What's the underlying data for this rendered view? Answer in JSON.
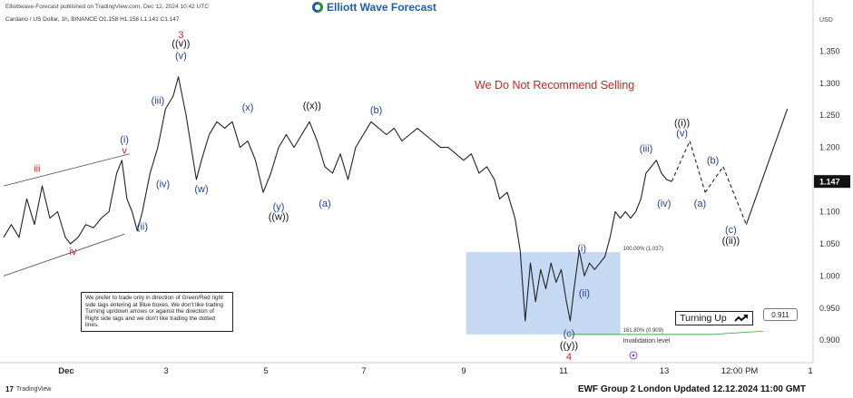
{
  "header": {
    "publisher": "Elliottwave-Forecast published on TradingView.com, Dec 12, 2024 10:42 UTC",
    "symbol_line": "Cardano / US Dollar, 1h, BINANCE  O1.158  H1.158  L1.141  C1.147",
    "brand": "Elliott Wave Forecast"
  },
  "warning": "We Do Not Recommend Selling",
  "note": "We prefer to trade only in direction of Green/Red right side tags entering at Blue boxes. We don't like trading Turning up/down arrows or against the direction of Right side tags and we don't like trading the dotted lines.",
  "turning_up": {
    "label": "Turning Up",
    "icon": "trend-up-arrow-icon"
  },
  "right_price_tag": "0.911",
  "footer": {
    "tv_label": "TradingView",
    "update": "EWF Group 2 London Updated 12.12.2024 11:00 GMT"
  },
  "fib_labels": {
    "top": "100.00% (1.037)",
    "bottom": "161.80% (0.909)",
    "invalidation": "Invalidation level"
  },
  "colors": {
    "blue_label": "#1e3fa6",
    "red_label": "#c8211d",
    "black_label": "#111111",
    "box_fill": "#bcd2f0",
    "invalidation": "#3aa548",
    "price_line": "#222222"
  },
  "chart_data": {
    "type": "line",
    "title": "Cardano / US Dollar, 1h, BINANCE",
    "currency": "USD",
    "y_ticks": [
      0.9,
      0.95,
      1.0,
      1.05,
      1.1,
      1.15,
      1.2,
      1.25,
      1.3,
      1.35
    ],
    "y_tick_labels": [
      "0.900",
      "0.950",
      "1.000",
      "1.050",
      "1.100",
      "1.150",
      "1.200",
      "1.250",
      "1.300",
      "1.350"
    ],
    "ylim": [
      0.865,
      1.39
    ],
    "x_tick_labels": [
      "Dec",
      "3",
      "5",
      "7",
      "9",
      "11",
      "13",
      "12:00 PM",
      "1"
    ],
    "current_price": "1.147",
    "price_series": [
      [
        0.0,
        1.06
      ],
      [
        0.3,
        1.08
      ],
      [
        0.6,
        1.06
      ],
      [
        0.9,
        1.12
      ],
      [
        1.2,
        1.08
      ],
      [
        1.5,
        1.14
      ],
      [
        1.8,
        1.09
      ],
      [
        2.1,
        1.1
      ],
      [
        2.4,
        1.06
      ],
      [
        2.6,
        1.05
      ],
      [
        2.9,
        1.06
      ],
      [
        3.2,
        1.08
      ],
      [
        3.5,
        1.075
      ],
      [
        3.8,
        1.09
      ],
      [
        4.1,
        1.1
      ],
      [
        4.4,
        1.16
      ],
      [
        4.6,
        1.18
      ],
      [
        4.8,
        1.12
      ],
      [
        5.0,
        1.1
      ],
      [
        5.2,
        1.07
      ],
      [
        5.4,
        1.1
      ],
      [
        5.7,
        1.16
      ],
      [
        6.0,
        1.2
      ],
      [
        6.3,
        1.26
      ],
      [
        6.6,
        1.28
      ],
      [
        6.8,
        1.31
      ],
      [
        7.1,
        1.25
      ],
      [
        7.3,
        1.2
      ],
      [
        7.5,
        1.15
      ],
      [
        7.7,
        1.18
      ],
      [
        8.0,
        1.22
      ],
      [
        8.3,
        1.24
      ],
      [
        8.6,
        1.23
      ],
      [
        8.9,
        1.24
      ],
      [
        9.2,
        1.2
      ],
      [
        9.5,
        1.21
      ],
      [
        9.8,
        1.18
      ],
      [
        10.1,
        1.13
      ],
      [
        10.4,
        1.16
      ],
      [
        10.7,
        1.2
      ],
      [
        11.0,
        1.22
      ],
      [
        11.3,
        1.2
      ],
      [
        11.6,
        1.22
      ],
      [
        11.9,
        1.24
      ],
      [
        12.2,
        1.21
      ],
      [
        12.5,
        1.17
      ],
      [
        12.8,
        1.16
      ],
      [
        13.1,
        1.19
      ],
      [
        13.4,
        1.15
      ],
      [
        13.7,
        1.2
      ],
      [
        14.0,
        1.22
      ],
      [
        14.3,
        1.24
      ],
      [
        14.6,
        1.23
      ],
      [
        14.9,
        1.22
      ],
      [
        15.2,
        1.23
      ],
      [
        15.5,
        1.21
      ],
      [
        15.8,
        1.22
      ],
      [
        16.1,
        1.23
      ],
      [
        16.4,
        1.22
      ],
      [
        16.7,
        1.21
      ],
      [
        17.0,
        1.2
      ],
      [
        17.3,
        1.2
      ],
      [
        17.6,
        1.19
      ],
      [
        17.9,
        1.18
      ],
      [
        18.2,
        1.19
      ],
      [
        18.5,
        1.16
      ],
      [
        18.8,
        1.17
      ],
      [
        19.1,
        1.15
      ],
      [
        19.3,
        1.12
      ],
      [
        19.6,
        1.13
      ],
      [
        19.9,
        1.09
      ],
      [
        20.1,
        1.04
      ],
      [
        20.3,
        0.93
      ],
      [
        20.5,
        1.02
      ],
      [
        20.7,
        0.96
      ],
      [
        20.9,
        1.01
      ],
      [
        21.1,
        0.98
      ],
      [
        21.3,
        1.02
      ],
      [
        21.5,
        0.99
      ],
      [
        21.7,
        1.01
      ],
      [
        21.9,
        0.96
      ],
      [
        22.05,
        0.93
      ],
      [
        22.2,
        0.98
      ],
      [
        22.4,
        1.04
      ],
      [
        22.6,
        1.0
      ],
      [
        22.8,
        1.02
      ],
      [
        23.0,
        1.01
      ],
      [
        23.2,
        1.02
      ],
      [
        23.4,
        1.03
      ],
      [
        23.6,
        1.06
      ],
      [
        23.8,
        1.1
      ],
      [
        24.0,
        1.09
      ],
      [
        24.2,
        1.1
      ],
      [
        24.4,
        1.09
      ],
      [
        24.6,
        1.1
      ],
      [
        24.8,
        1.12
      ],
      [
        25.0,
        1.16
      ],
      [
        25.2,
        1.17
      ],
      [
        25.4,
        1.18
      ],
      [
        25.6,
        1.16
      ],
      [
        25.8,
        1.15
      ],
      [
        26.0,
        1.147
      ]
    ],
    "projection": [
      [
        26.0,
        1.147
      ],
      [
        26.7,
        1.21
      ],
      [
        27.3,
        1.13
      ],
      [
        28.0,
        1.17
      ],
      [
        28.9,
        1.08
      ],
      [
        30.5,
        1.26
      ]
    ],
    "channel": {
      "upper": [
        [
          0.0,
          1.14
        ],
        [
          4.9,
          1.19
        ]
      ],
      "lower": [
        [
          0.0,
          1.0
        ],
        [
          4.7,
          1.065
        ]
      ]
    },
    "invalidation_level": 0.909,
    "fib_box": {
      "x0": 18.0,
      "x1": 24.0,
      "top": 1.037,
      "bottom": 0.909
    },
    "wave_labels": [
      {
        "text": "iii",
        "x": 1.3,
        "y": 1.162,
        "color": "red"
      },
      {
        "text": "iv",
        "x": 2.7,
        "y": 1.033,
        "color": "red"
      },
      {
        "text": "(i)",
        "x": 4.7,
        "y": 1.207,
        "color": "blue"
      },
      {
        "text": "v",
        "x": 4.7,
        "y": 1.19,
        "color": "red"
      },
      {
        "text": "(ii)",
        "x": 5.4,
        "y": 1.072,
        "color": "blue"
      },
      {
        "text": "(iii)",
        "x": 6.0,
        "y": 1.268,
        "color": "blue"
      },
      {
        "text": "(iv)",
        "x": 6.2,
        "y": 1.138,
        "color": "blue"
      },
      {
        "text": "3",
        "x": 6.9,
        "y": 1.37,
        "color": "red"
      },
      {
        "text": "((v))",
        "x": 6.9,
        "y": 1.357,
        "color": "black"
      },
      {
        "text": "(v)",
        "x": 6.9,
        "y": 1.338,
        "color": "blue"
      },
      {
        "text": "(w)",
        "x": 7.7,
        "y": 1.13,
        "color": "blue"
      },
      {
        "text": "(x)",
        "x": 9.5,
        "y": 1.257,
        "color": "blue"
      },
      {
        "text": "(y)",
        "x": 10.7,
        "y": 1.103,
        "color": "blue"
      },
      {
        "text": "((w))",
        "x": 10.7,
        "y": 1.087,
        "color": "black"
      },
      {
        "text": "((x))",
        "x": 12.0,
        "y": 1.26,
        "color": "black"
      },
      {
        "text": "(a)",
        "x": 12.5,
        "y": 1.108,
        "color": "blue"
      },
      {
        "text": "(b)",
        "x": 14.5,
        "y": 1.253,
        "color": "blue"
      },
      {
        "text": "(c)",
        "x": 22.0,
        "y": 0.905,
        "color": "blue"
      },
      {
        "text": "((y))",
        "x": 22.0,
        "y": 0.887,
        "color": "black"
      },
      {
        "text": "4",
        "x": 22.0,
        "y": 0.869,
        "color": "red"
      },
      {
        "text": "(i)",
        "x": 22.5,
        "y": 1.038,
        "color": "blue"
      },
      {
        "text": "(ii)",
        "x": 22.6,
        "y": 0.968,
        "color": "blue"
      },
      {
        "text": "(iii)",
        "x": 25.0,
        "y": 1.193,
        "color": "blue"
      },
      {
        "text": "(iv)",
        "x": 25.7,
        "y": 1.108,
        "color": "blue"
      },
      {
        "text": "((i))",
        "x": 26.4,
        "y": 1.233,
        "color": "black"
      },
      {
        "text": "(v)",
        "x": 26.4,
        "y": 1.217,
        "color": "blue"
      },
      {
        "text": "(a)",
        "x": 27.1,
        "y": 1.108,
        "color": "blue"
      },
      {
        "text": "(b)",
        "x": 27.6,
        "y": 1.175,
        "color": "blue"
      },
      {
        "text": "(c)",
        "x": 28.3,
        "y": 1.067,
        "color": "blue"
      },
      {
        "text": "((ii))",
        "x": 28.3,
        "y": 1.05,
        "color": "black"
      }
    ]
  }
}
